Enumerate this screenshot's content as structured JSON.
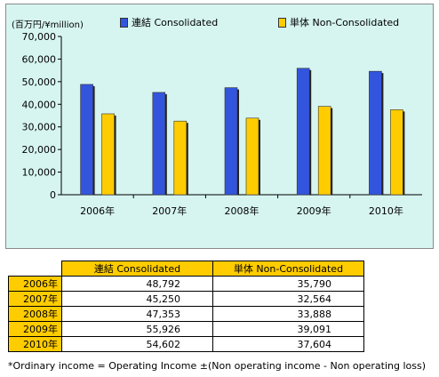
{
  "chart_data": {
    "type": "bar",
    "unit_label": "(百万円/¥million)",
    "categories": [
      "2006年",
      "2007年",
      "2008年",
      "2009年",
      "2010年"
    ],
    "series": [
      {
        "name": "連結 Consolidated",
        "color": "#3355dd",
        "values": [
          48792,
          45250,
          47353,
          55926,
          54602
        ]
      },
      {
        "name": "単体 Non-Consolidated",
        "color": "#ffcc00",
        "values": [
          35790,
          32564,
          33888,
          39091,
          37604
        ]
      }
    ],
    "yticks": [
      "0",
      "10,000",
      "20,000",
      "30,000",
      "40,000",
      "50,000",
      "60,000",
      "70,000"
    ],
    "ylim": [
      0,
      70000
    ],
    "background": "#d6f5f0",
    "grid": false,
    "legend": "top"
  },
  "table": {
    "headers": [
      "連結 Consolidated",
      "単体 Non-Consolidated"
    ],
    "rows": [
      {
        "year": "2006年",
        "consolidated": "48,792",
        "non_consolidated": "35,790"
      },
      {
        "year": "2007年",
        "consolidated": "45,250",
        "non_consolidated": "32,564"
      },
      {
        "year": "2008年",
        "consolidated": "47,353",
        "non_consolidated": "33,888"
      },
      {
        "year": "2009年",
        "consolidated": "55,926",
        "non_consolidated": "39,091"
      },
      {
        "year": "2010年",
        "consolidated": "54,602",
        "non_consolidated": "37,604"
      }
    ]
  },
  "footnote": "*Ordinary income = Operating Income ±(Non operating income - Non operating loss)"
}
